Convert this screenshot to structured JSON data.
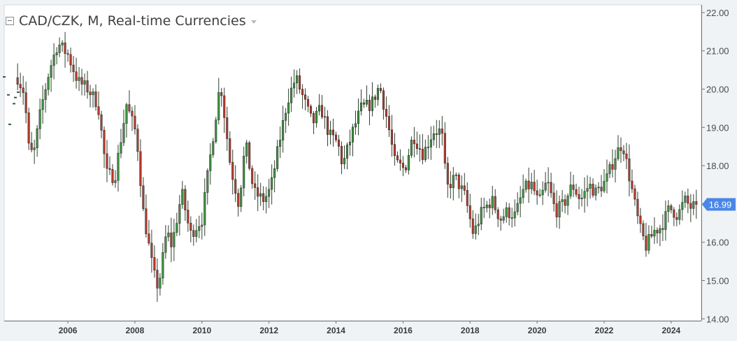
{
  "chart_data": {
    "type": "candlestick",
    "title": "CAD/CZK, M, Real-time Currencies",
    "xlabel": "",
    "ylabel": "",
    "ylim": [
      14.0,
      22.0
    ],
    "xlim": [
      2004.1,
      2024.9
    ],
    "yticks": [
      "22.00",
      "21.00",
      "20.00",
      "19.00",
      "18.00",
      "17.00",
      "16.00",
      "15.00",
      "14.00"
    ],
    "xticks": [
      "2006",
      "2008",
      "2010",
      "2012",
      "2014",
      "2016",
      "2018",
      "2020",
      "2022",
      "2024"
    ],
    "last_price": "16.99",
    "grid": false,
    "legend": "none",
    "colors": {
      "up": "#3a9a3c",
      "down": "#c0392b",
      "wick": "#2f3f2f",
      "price_tag": "#4a86e8"
    },
    "price_path": [
      [
        2004.5,
        20.3
      ],
      [
        2004.7,
        19.9
      ],
      [
        2004.85,
        18.3
      ],
      [
        2005.0,
        18.4
      ],
      [
        2005.2,
        19.5
      ],
      [
        2005.45,
        20.5
      ],
      [
        2005.7,
        21.2
      ],
      [
        2006.0,
        20.9
      ],
      [
        2006.3,
        20.2
      ],
      [
        2006.6,
        20.0
      ],
      [
        2006.9,
        19.6
      ],
      [
        2007.15,
        17.8
      ],
      [
        2007.4,
        17.7
      ],
      [
        2007.75,
        19.6
      ],
      [
        2008.05,
        18.8
      ],
      [
        2008.25,
        16.8
      ],
      [
        2008.55,
        15.2
      ],
      [
        2008.7,
        14.8
      ],
      [
        2008.95,
        16.3
      ],
      [
        2009.1,
        15.9
      ],
      [
        2009.4,
        17.3
      ],
      [
        2009.65,
        16.2
      ],
      [
        2010.0,
        16.6
      ],
      [
        2010.15,
        17.6
      ],
      [
        2010.55,
        20.2
      ],
      [
        2010.85,
        18.0
      ],
      [
        2011.1,
        17.0
      ],
      [
        2011.3,
        18.6
      ],
      [
        2011.55,
        17.3
      ],
      [
        2011.85,
        17.1
      ],
      [
        2012.05,
        17.4
      ],
      [
        2012.35,
        18.8
      ],
      [
        2012.55,
        19.7
      ],
      [
        2012.8,
        20.3
      ],
      [
        2013.05,
        19.7
      ],
      [
        2013.3,
        19.1
      ],
      [
        2013.55,
        19.5
      ],
      [
        2013.8,
        18.8
      ],
      [
        2014.05,
        18.6
      ],
      [
        2014.2,
        18.0
      ],
      [
        2014.5,
        18.9
      ],
      [
        2014.75,
        19.5
      ],
      [
        2015.05,
        19.6
      ],
      [
        2015.3,
        20.1
      ],
      [
        2015.55,
        19.1
      ],
      [
        2015.75,
        18.1
      ],
      [
        2016.05,
        17.9
      ],
      [
        2016.3,
        18.8
      ],
      [
        2016.6,
        18.3
      ],
      [
        2016.9,
        18.9
      ],
      [
        2017.15,
        18.9
      ],
      [
        2017.3,
        17.4
      ],
      [
        2017.55,
        17.7
      ],
      [
        2017.85,
        17.2
      ],
      [
        2018.1,
        16.2
      ],
      [
        2018.35,
        16.8
      ],
      [
        2018.65,
        17.1
      ],
      [
        2018.9,
        16.6
      ],
      [
        2019.1,
        16.8
      ],
      [
        2019.35,
        16.7
      ],
      [
        2019.6,
        17.4
      ],
      [
        2019.85,
        17.5
      ],
      [
        2020.05,
        17.0
      ],
      [
        2020.3,
        17.6
      ],
      [
        2020.55,
        16.8
      ],
      [
        2020.8,
        17.0
      ],
      [
        2021.05,
        17.5
      ],
      [
        2021.3,
        17.1
      ],
      [
        2021.55,
        17.5
      ],
      [
        2021.75,
        17.3
      ],
      [
        2022.05,
        17.6
      ],
      [
        2022.35,
        18.3
      ],
      [
        2022.55,
        18.6
      ],
      [
        2022.8,
        17.5
      ],
      [
        2023.05,
        16.4
      ],
      [
        2023.25,
        15.9
      ],
      [
        2023.5,
        16.3
      ],
      [
        2023.7,
        16.4
      ],
      [
        2023.95,
        16.9
      ],
      [
        2024.2,
        16.7
      ],
      [
        2024.4,
        17.1
      ],
      [
        2024.6,
        16.9
      ],
      [
        2024.75,
        16.99
      ]
    ]
  }
}
